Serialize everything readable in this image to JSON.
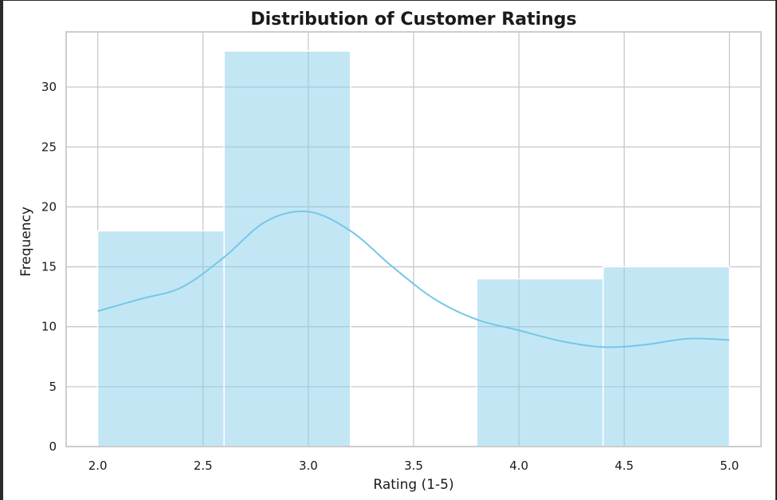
{
  "chart_data": {
    "type": "bar",
    "title": "Distribution of Customer Ratings",
    "xlabel": "Rating (1-5)",
    "ylabel": "Frequency",
    "xlim": [
      1.85,
      5.15
    ],
    "ylim": [
      0,
      34.6
    ],
    "xticks": [
      2.0,
      2.5,
      3.0,
      3.5,
      4.0,
      4.5,
      5.0
    ],
    "xtick_labels": [
      "2.0",
      "2.5",
      "3.0",
      "3.5",
      "4.0",
      "4.5",
      "5.0"
    ],
    "yticks": [
      0,
      5,
      10,
      15,
      20,
      25,
      30
    ],
    "ytick_labels": [
      "0",
      "5",
      "10",
      "15",
      "20",
      "25",
      "30"
    ],
    "grid": true,
    "bins": [
      {
        "x0": 2.0,
        "x1": 2.6,
        "count": 18
      },
      {
        "x0": 2.6,
        "x1": 3.2,
        "count": 33
      },
      {
        "x0": 3.2,
        "x1": 3.8,
        "count": 0
      },
      {
        "x0": 3.8,
        "x1": 4.4,
        "count": 14
      },
      {
        "x0": 4.4,
        "x1": 5.0,
        "count": 15
      }
    ],
    "kde": {
      "x": [
        2.0,
        2.2,
        2.4,
        2.6,
        2.8,
        3.0,
        3.2,
        3.4,
        3.6,
        3.8,
        4.0,
        4.2,
        4.4,
        4.6,
        4.8,
        5.0
      ],
      "y": [
        11.3,
        12.3,
        13.3,
        15.8,
        18.8,
        19.6,
        18.0,
        15.0,
        12.3,
        10.6,
        9.7,
        8.8,
        8.3,
        8.5,
        9.0,
        8.9
      ]
    },
    "colors": {
      "bar_fill": "#87ceeb",
      "bar_opacity": 0.5,
      "bar_edge": "#ffffff",
      "kde_line": "#75c7e8",
      "grid": "#c8c8c8",
      "frame": "#c8c8c8"
    }
  }
}
